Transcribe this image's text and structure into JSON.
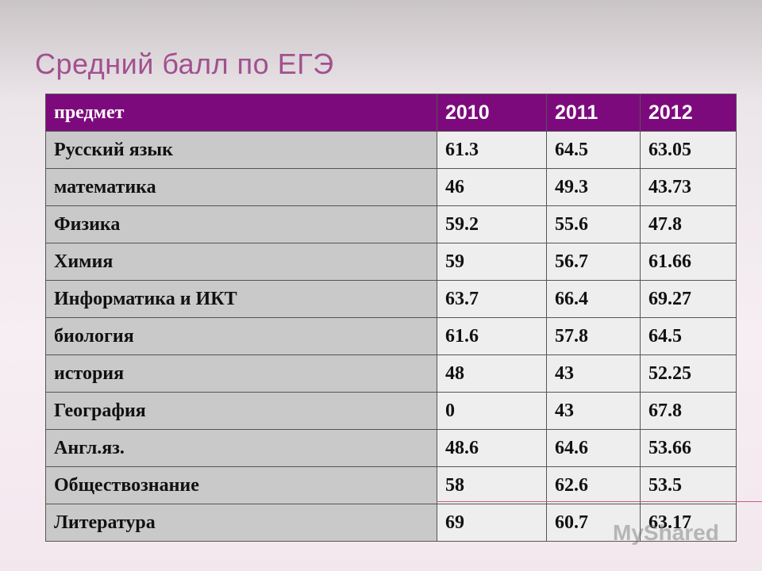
{
  "header": {
    "title": "Средний балл по ЕГЭ"
  },
  "table": {
    "columns": [
      "предмет",
      "2010",
      "2011",
      "2012"
    ],
    "rows": [
      [
        "Русский язык",
        61.3,
        64.5,
        63.05
      ],
      [
        "математика",
        46,
        49.3,
        43.73
      ],
      [
        "Физика",
        59.2,
        55.6,
        47.8
      ],
      [
        "Химия",
        59,
        56.7,
        61.66
      ],
      [
        "Информатика и ИКТ",
        63.7,
        66.4,
        69.27
      ],
      [
        "биология",
        61.6,
        57.8,
        64.5
      ],
      [
        "история",
        48,
        43,
        52.25
      ],
      [
        "География",
        0,
        43,
        67.8
      ],
      [
        "Англ.яз.",
        48.6,
        64.6,
        53.66
      ],
      [
        "Обществознание",
        58,
        62.6,
        53.5
      ],
      [
        "Литература",
        69,
        60.7,
        63.17
      ]
    ]
  },
  "watermark": "MyShared"
}
